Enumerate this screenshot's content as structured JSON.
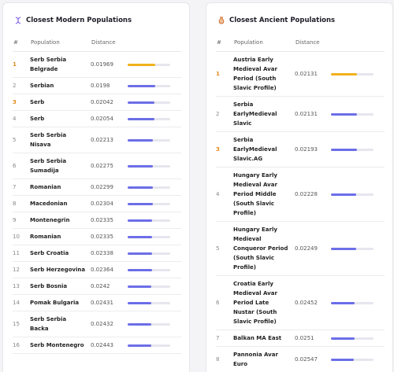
{
  "panels": [
    {
      "title": "Closest Modern Populations",
      "columns": [
        "#",
        "Population",
        "Distance"
      ],
      "rows": [
        {
          "rank": 1,
          "population": "Serb Serbia Belgrade",
          "distance": 0.01969
        },
        {
          "rank": 2,
          "population": "Serbian",
          "distance": 0.0198
        },
        {
          "rank": 3,
          "population": "Serb",
          "distance": 0.02042
        },
        {
          "rank": 4,
          "population": "Serb",
          "distance": 0.02054
        },
        {
          "rank": 5,
          "population": "Serb Serbia Nisava",
          "distance": 0.02213
        },
        {
          "rank": 6,
          "population": "Serb Serbia Sumadija",
          "distance": 0.02275
        },
        {
          "rank": 7,
          "population": "Romanian",
          "distance": 0.02299
        },
        {
          "rank": 8,
          "population": "Macedonian",
          "distance": 0.02304
        },
        {
          "rank": 9,
          "population": "Montenegrin",
          "distance": 0.02335
        },
        {
          "rank": 10,
          "population": "Romanian",
          "distance": 0.02335
        },
        {
          "rank": 11,
          "population": "Serb Croatia",
          "distance": 0.02338
        },
        {
          "rank": 12,
          "population": "Serb Herzegovina",
          "distance": 0.02364
        },
        {
          "rank": 13,
          "population": "Serb Bosnia",
          "distance": 0.0242
        },
        {
          "rank": 14,
          "population": "Pomak Bulgaria",
          "distance": 0.02431
        },
        {
          "rank": 15,
          "population": "Serb Serbia Backa",
          "distance": 0.02432
        },
        {
          "rank": 16,
          "population": "Serb Montenegro",
          "distance": 0.02443
        }
      ]
    },
    {
      "title": "Closest Ancient Populations",
      "columns": [
        "#",
        "Population",
        "Distance"
      ],
      "rows": [
        {
          "rank": 1,
          "population": "Austria Early Medieval Avar Period (South Slavic Profile)",
          "distance": 0.02131
        },
        {
          "rank": 2,
          "population": "Serbia EarlyMedieval Slavic",
          "distance": 0.02131
        },
        {
          "rank": 3,
          "population": "Serbia EarlyMedieval Slavic.AG",
          "distance": 0.02193
        },
        {
          "rank": 4,
          "population": "Hungary Early Medieval Avar Period Middle (South Slavic Profile)",
          "distance": 0.02228
        },
        {
          "rank": 5,
          "population": "Hungary Early Medieval Conqueror Period (South Slavic Profile)",
          "distance": 0.02249
        },
        {
          "rank": 6,
          "population": "Croatia Early Medieval Avar Period Late Nustar (South Slavic Profile)",
          "distance": 0.02452
        },
        {
          "rank": 7,
          "population": "Balkan MA East",
          "distance": 0.0251
        },
        {
          "rank": 8,
          "population": "Pannonia Avar Euro",
          "distance": 0.02547
        }
      ]
    }
  ]
}
